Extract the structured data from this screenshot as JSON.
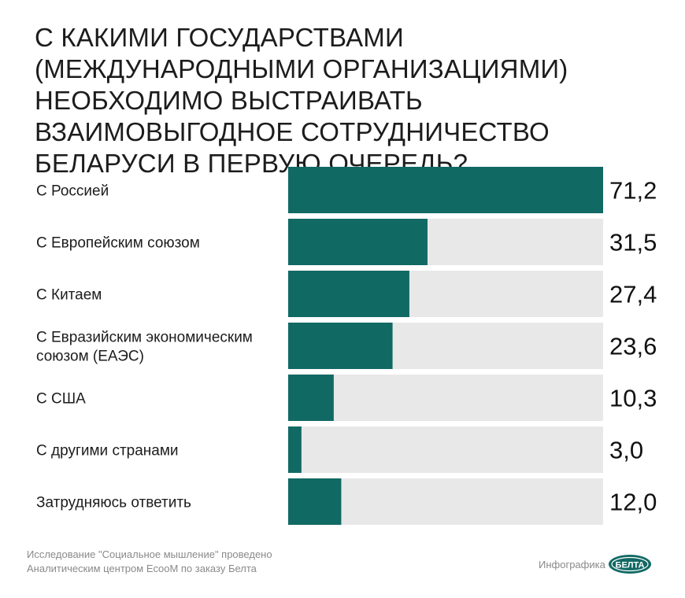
{
  "title": "С какими государствами (международными организациями) необходимо выстраивать взаимовыгодное сотрудничество Беларуси в первую очередь?",
  "chart_data": {
    "type": "bar",
    "orientation": "horizontal",
    "categories": [
      [
        "С Россией"
      ],
      [
        "С Европейским союзом"
      ],
      [
        "С Китаем"
      ],
      [
        "С Евразийским экономическим",
        "союзом (ЕАЭС)"
      ],
      [
        "С США"
      ],
      [
        "С другими странами"
      ],
      [
        "Затрудняюсь ответить"
      ]
    ],
    "values": [
      71.2,
      31.5,
      27.4,
      23.6,
      10.3,
      3.0,
      12.0
    ],
    "value_labels": [
      "71,2",
      "31,5",
      "27,4",
      "23,6",
      "10,3",
      "3,0",
      "12,0"
    ],
    "xlim": [
      0,
      71.2
    ],
    "grid": false,
    "legend": "none",
    "colors": {
      "bar": "#116964",
      "track": "#e8e8e8"
    }
  },
  "footer": {
    "note_line1": "Исследование \"Социальное мышление\" проведено",
    "note_line2": "Аналитическим центром EcooM по заказу Белта",
    "credit": "Инфографика",
    "logo_text": "БЕЛТА"
  }
}
